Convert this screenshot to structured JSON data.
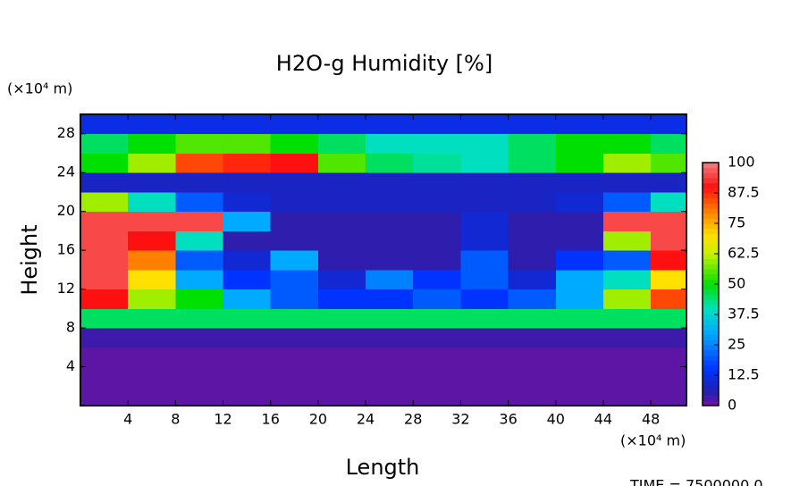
{
  "chart_data": {
    "type": "heatmap",
    "title": "H2O-g Humidity [%]",
    "x_label": "Length",
    "y_label": "Height",
    "x_unit": "(×10⁴ m)",
    "y_unit": "(×10⁴ m)",
    "footer": "TIME = 7500000.0",
    "x": [
      2,
      6,
      10,
      14,
      18,
      22,
      26,
      30,
      34,
      38,
      42,
      46,
      50
    ],
    "y": [
      1,
      3,
      5,
      7,
      9,
      11,
      13,
      15,
      17,
      19,
      21,
      23,
      25,
      27,
      29
    ],
    "xlim": [
      0,
      51
    ],
    "ylim": [
      0,
      30
    ],
    "xticks": [
      4,
      8,
      12,
      16,
      20,
      24,
      28,
      32,
      36,
      40,
      44,
      48
    ],
    "yticks": [
      4,
      8,
      12,
      16,
      20,
      24,
      28
    ],
    "z": [
      [
        2,
        2,
        2,
        2,
        2,
        2,
        2,
        2,
        2,
        2,
        2,
        2,
        2
      ],
      [
        2,
        2,
        2,
        2,
        2,
        2,
        2,
        2,
        2,
        2,
        2,
        2,
        2
      ],
      [
        2,
        2,
        2,
        2,
        2,
        2,
        2,
        2,
        2,
        2,
        2,
        2,
        2
      ],
      [
        4,
        4,
        4,
        4,
        4,
        4,
        4,
        4,
        4,
        4,
        4,
        4,
        4
      ],
      [
        45,
        45,
        45,
        45,
        45,
        45,
        45,
        45,
        45,
        45,
        45,
        45,
        45
      ],
      [
        90,
        60,
        50,
        30,
        20,
        15,
        15,
        20,
        15,
        20,
        30,
        60,
        85
      ],
      [
        95,
        70,
        30,
        15,
        20,
        10,
        25,
        15,
        20,
        10,
        30,
        40,
        70
      ],
      [
        95,
        80,
        20,
        10,
        30,
        5,
        5,
        5,
        20,
        5,
        15,
        20,
        90
      ],
      [
        95,
        90,
        40,
        5,
        5,
        5,
        5,
        5,
        10,
        5,
        5,
        60,
        95
      ],
      [
        95,
        95,
        95,
        30,
        5,
        5,
        5,
        5,
        10,
        5,
        5,
        95,
        95
      ],
      [
        60,
        40,
        20,
        10,
        8,
        8,
        8,
        8,
        8,
        8,
        10,
        20,
        40
      ],
      [
        8,
        8,
        8,
        8,
        8,
        8,
        8,
        8,
        8,
        8,
        8,
        8,
        8
      ],
      [
        50,
        60,
        85,
        88,
        90,
        55,
        45,
        42,
        40,
        45,
        50,
        60,
        55
      ],
      [
        45,
        50,
        55,
        55,
        50,
        45,
        40,
        40,
        40,
        45,
        50,
        50,
        45
      ],
      [
        12,
        12,
        12,
        12,
        12,
        12,
        12,
        12,
        12,
        12,
        12,
        12,
        12
      ]
    ],
    "colorbar_ticks": [
      0,
      12.5,
      25,
      37.5,
      50,
      62.5,
      75,
      87.5,
      100
    ],
    "colorscale": [
      [
        0,
        "#7b0fa0"
      ],
      [
        6,
        "#2020b0"
      ],
      [
        15,
        "#0033ff"
      ],
      [
        30,
        "#00aaff"
      ],
      [
        40,
        "#00e0c0"
      ],
      [
        50,
        "#00e000"
      ],
      [
        62.5,
        "#c8f000"
      ],
      [
        70,
        "#ffe000"
      ],
      [
        80,
        "#ff8000"
      ],
      [
        90,
        "#ff1010"
      ],
      [
        100,
        "#f08080"
      ]
    ]
  }
}
